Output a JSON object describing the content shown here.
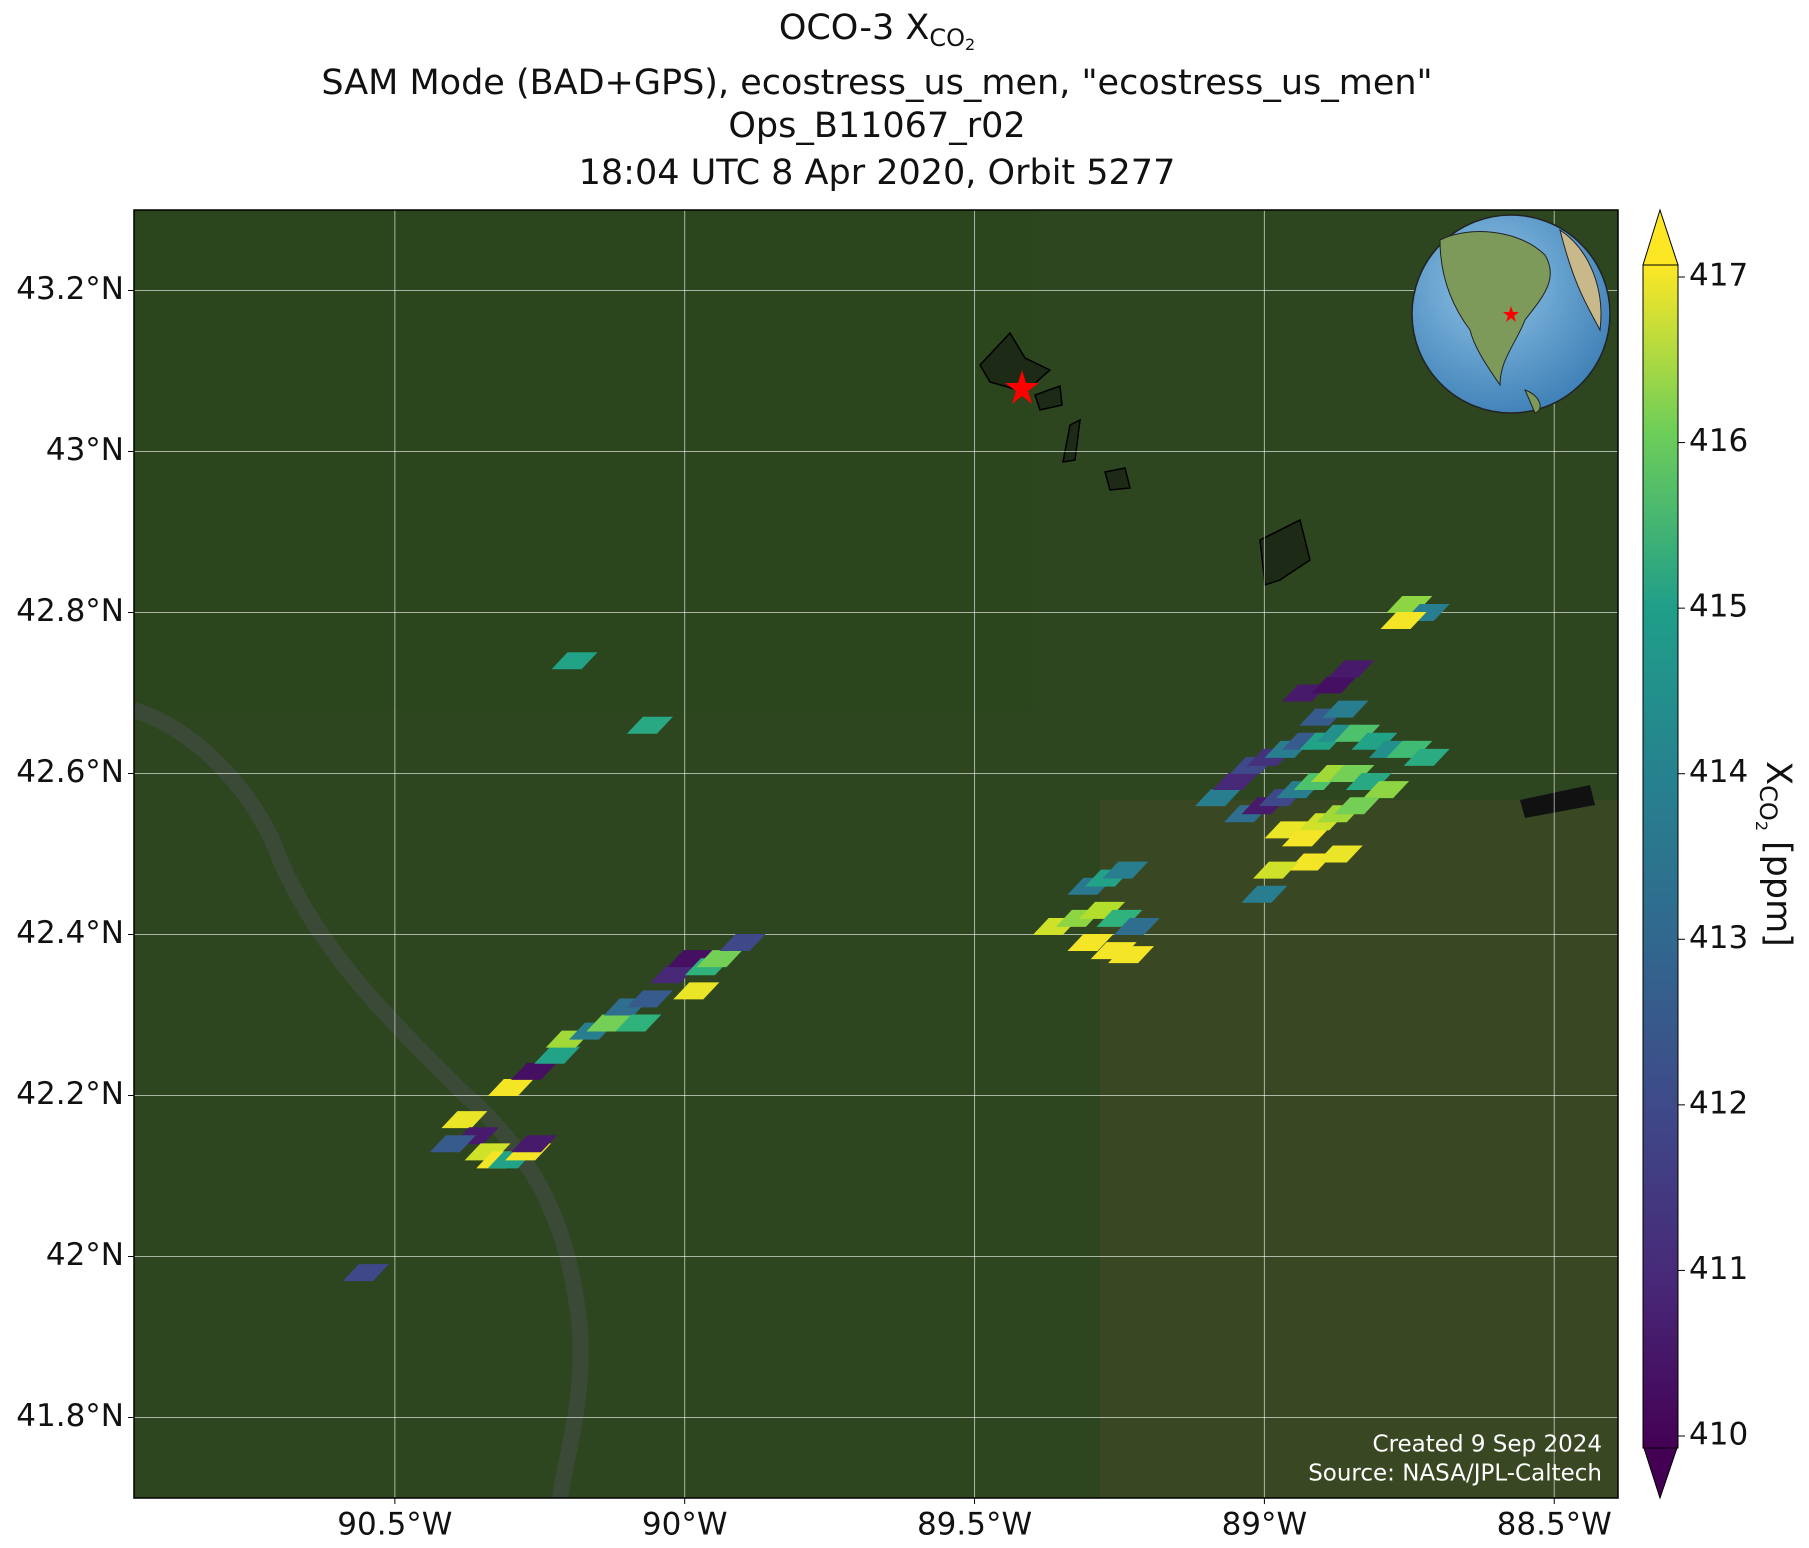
{
  "title": {
    "line1": "OCO-3 X",
    "line1_sub": "CO",
    "line1_subsub": "2",
    "line2": "SAM Mode (BAD+GPS), ecostress_us_men, \"ecostress_us_men\"",
    "line3": "Ops_B11067_r02",
    "line4": "18:04 UTC 8 Apr 2020, Orbit 5277"
  },
  "map": {
    "xlim": [
      -90.95,
      -88.39
    ],
    "ylim": [
      41.7,
      43.3
    ],
    "xticks": [
      {
        "value": -90.5,
        "label": "90.5°W"
      },
      {
        "value": -90,
        "label": "90°W"
      },
      {
        "value": -89.5,
        "label": "89.5°W"
      },
      {
        "value": -89,
        "label": "89°W"
      },
      {
        "value": -88.5,
        "label": "88.5°W"
      }
    ],
    "yticks": [
      {
        "value": 41.8,
        "label": "41.8°N"
      },
      {
        "value": 42,
        "label": "42°N"
      },
      {
        "value": 42.2,
        "label": "42.2°N"
      },
      {
        "value": 42.4,
        "label": "42.4°N"
      },
      {
        "value": 42.6,
        "label": "42.6°N"
      },
      {
        "value": 42.8,
        "label": "42.8°N"
      },
      {
        "value": 43,
        "label": "43°N"
      },
      {
        "value": 43.2,
        "label": "43.2°N"
      }
    ],
    "soundings": {
      "lon": [
        -90.38,
        -90.36,
        -90.34,
        -90.4,
        -90.32,
        -90.3,
        -90.27,
        -90.26,
        -90.3,
        -90.26,
        -90.22,
        -90.2,
        -90.16,
        -90.13,
        -90.1,
        -90.08,
        -90.06,
        -90.02,
        -89.99,
        -89.96,
        -89.94,
        -89.98,
        -89.9,
        -90.19,
        -90.06,
        -90.55,
        -89.36,
        -89.32,
        -89.28,
        -89.25,
        -89.22,
        -89.3,
        -89.26,
        -89.23,
        -89.3,
        -89.27,
        -89.24,
        -89.08,
        -89.05,
        -89.02,
        -88.99,
        -88.96,
        -88.93,
        -88.9,
        -88.87,
        -88.84,
        -88.81,
        -88.78,
        -88.75,
        -88.72,
        -89.03,
        -89.0,
        -88.97,
        -88.94,
        -88.91,
        -88.88,
        -88.85,
        -88.82,
        -88.79,
        -88.96,
        -88.93,
        -88.9,
        -88.87,
        -88.84,
        -88.92,
        -88.87,
        -88.98,
        -88.93,
        -88.88,
        -88.85,
        -88.9,
        -88.86,
        -89.0,
        -88.75,
        -88.72,
        -88.76
      ],
      "lat": [
        42.17,
        42.15,
        42.13,
        42.14,
        42.12,
        42.12,
        42.13,
        42.14,
        42.21,
        42.23,
        42.25,
        42.27,
        42.28,
        42.29,
        42.31,
        42.29,
        42.32,
        42.35,
        42.37,
        42.36,
        42.37,
        42.33,
        42.39,
        42.74,
        42.66,
        41.98,
        42.41,
        42.42,
        42.43,
        42.42,
        42.41,
        42.39,
        42.38,
        42.375,
        42.46,
        42.47,
        42.48,
        42.57,
        42.59,
        42.61,
        42.62,
        42.63,
        42.64,
        42.64,
        42.65,
        42.65,
        42.64,
        42.63,
        42.63,
        42.62,
        42.55,
        42.56,
        42.57,
        42.58,
        42.59,
        42.6,
        42.6,
        42.59,
        42.58,
        42.53,
        42.52,
        42.54,
        42.55,
        42.56,
        42.49,
        42.5,
        42.48,
        42.7,
        42.71,
        42.73,
        42.67,
        42.68,
        42.45,
        42.81,
        42.8,
        42.79
      ],
      "xco2": [
        416.8,
        410.5,
        416.5,
        412,
        416.9,
        414,
        416.9,
        410.5,
        416.9,
        410.3,
        414,
        416,
        413,
        415.5,
        412.5,
        414.5,
        412,
        410.8,
        410.3,
        414.5,
        415.5,
        416.8,
        411.5,
        414,
        414.2,
        411.5,
        416.5,
        415.8,
        416.2,
        414.5,
        412.5,
        416.9,
        416.9,
        416.9,
        412.8,
        414,
        413,
        413,
        410.8,
        411.5,
        411,
        413,
        412,
        414,
        413.5,
        415,
        414,
        413.5,
        414.8,
        414.3,
        412.5,
        410.5,
        411.5,
        413,
        415,
        416,
        415.5,
        414.2,
        415.8,
        416.8,
        416.9,
        416.5,
        416,
        415.5,
        416.9,
        416.8,
        416.5,
        410.5,
        410.3,
        410.5,
        412,
        413,
        413,
        415.8,
        413,
        416.9
      ]
    }
  },
  "colorbar": {
    "lim": [
      410,
      417
    ],
    "ticks": [
      410,
      411,
      412,
      413,
      414,
      415,
      416,
      417
    ],
    "label": "X",
    "label_sub": "CO",
    "label_subsub": "2",
    "label_unit": "[ppm]"
  },
  "footer": {
    "created": "Created 9 Sep 2024",
    "source": "Source: NASA/JPL-Caltech"
  }
}
